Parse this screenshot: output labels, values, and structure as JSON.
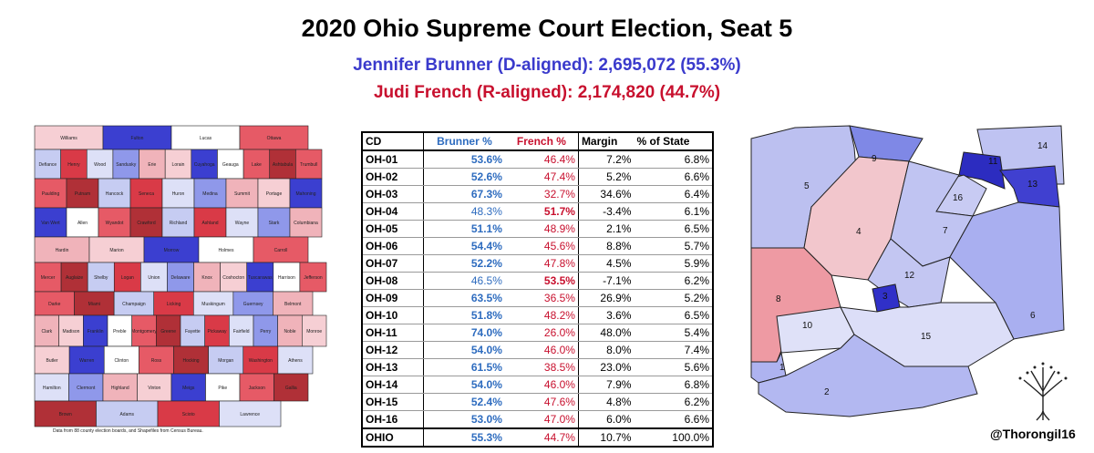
{
  "title": "2020 Ohio Supreme Court Election, Seat 5",
  "subtitle_d": "Jennifer Brunner (D-aligned): 2,695,072 (55.3%)",
  "subtitle_r": "Judi French (R-aligned): 2,174,820 (44.7%)",
  "colors": {
    "d_text": "#3a3acc",
    "r_text": "#c8102e",
    "brunner_col": "#2e6cbf",
    "french_col": "#c8102e"
  },
  "table": {
    "headers": [
      "CD",
      "Brunner %",
      "French %",
      "Margin",
      "% of State"
    ],
    "rows": [
      {
        "cd": "OH-01",
        "brunner": "53.6%",
        "french": "46.4%",
        "margin": "7.2%",
        "state": "6.8%",
        "winner": "b"
      },
      {
        "cd": "OH-02",
        "brunner": "52.6%",
        "french": "47.4%",
        "margin": "5.2%",
        "state": "6.6%",
        "winner": "b"
      },
      {
        "cd": "OH-03",
        "brunner": "67.3%",
        "french": "32.7%",
        "margin": "34.6%",
        "state": "6.4%",
        "winner": "b"
      },
      {
        "cd": "OH-04",
        "brunner": "48.3%",
        "french": "51.7%",
        "margin": "-3.4%",
        "state": "6.1%",
        "winner": "f"
      },
      {
        "cd": "OH-05",
        "brunner": "51.1%",
        "french": "48.9%",
        "margin": "2.1%",
        "state": "6.5%",
        "winner": "b"
      },
      {
        "cd": "OH-06",
        "brunner": "54.4%",
        "french": "45.6%",
        "margin": "8.8%",
        "state": "5.7%",
        "winner": "b"
      },
      {
        "cd": "OH-07",
        "brunner": "52.2%",
        "french": "47.8%",
        "margin": "4.5%",
        "state": "5.9%",
        "winner": "b"
      },
      {
        "cd": "OH-08",
        "brunner": "46.5%",
        "french": "53.5%",
        "margin": "-7.1%",
        "state": "6.2%",
        "winner": "f"
      },
      {
        "cd": "OH-09",
        "brunner": "63.5%",
        "french": "36.5%",
        "margin": "26.9%",
        "state": "5.2%",
        "winner": "b"
      },
      {
        "cd": "OH-10",
        "brunner": "51.8%",
        "french": "48.2%",
        "margin": "3.6%",
        "state": "6.5%",
        "winner": "b"
      },
      {
        "cd": "OH-11",
        "brunner": "74.0%",
        "french": "26.0%",
        "margin": "48.0%",
        "state": "5.4%",
        "winner": "b"
      },
      {
        "cd": "OH-12",
        "brunner": "54.0%",
        "french": "46.0%",
        "margin": "8.0%",
        "state": "7.4%",
        "winner": "b"
      },
      {
        "cd": "OH-13",
        "brunner": "61.5%",
        "french": "38.5%",
        "margin": "23.0%",
        "state": "5.6%",
        "winner": "b"
      },
      {
        "cd": "OH-14",
        "brunner": "54.0%",
        "french": "46.0%",
        "margin": "7.9%",
        "state": "6.8%",
        "winner": "b"
      },
      {
        "cd": "OH-15",
        "brunner": "52.4%",
        "french": "47.6%",
        "margin": "4.8%",
        "state": "6.2%",
        "winner": "b"
      },
      {
        "cd": "OH-16",
        "brunner": "53.0%",
        "french": "47.0%",
        "margin": "6.0%",
        "state": "6.6%",
        "winner": "b"
      }
    ],
    "total": {
      "cd": "OHIO",
      "brunner": "55.3%",
      "french": "44.7%",
      "margin": "10.7%",
      "state": "100.0%"
    }
  },
  "county_map": {
    "counties": [
      "Williams",
      "Fulton",
      "Lucas",
      "Ottawa",
      "Lake",
      "Ashtabula",
      "Defiance",
      "Henry",
      "Wood",
      "Sandusky",
      "Erie",
      "Lorain",
      "Cuyahoga",
      "Geauga",
      "Trumbull",
      "Paulding",
      "Putnam",
      "Hancock",
      "Seneca",
      "Huron",
      "Medina",
      "Summit",
      "Portage",
      "Mahoning",
      "Van Wert",
      "Allen",
      "Wyandot",
      "Crawford",
      "Richland",
      "Ashland",
      "Wayne",
      "Stark",
      "Columbiana",
      "Hardin",
      "Marion",
      "Morrow",
      "Holmes",
      "Carroll",
      "Mercer",
      "Auglaize",
      "Shelby",
      "Logan",
      "Union",
      "Delaware",
      "Knox",
      "Coshocton",
      "Tuscarawas",
      "Harrison",
      "Jefferson",
      "Darke",
      "Miami",
      "Champaign",
      "Licking",
      "Muskingum",
      "Guernsey",
      "Belmont",
      "Clark",
      "Madison",
      "Franklin",
      "Preble",
      "Montgomery",
      "Greene",
      "Fayette",
      "Pickaway",
      "Fairfield",
      "Perry",
      "Noble",
      "Monroe",
      "Butler",
      "Warren",
      "Clinton",
      "Ross",
      "Hocking",
      "Morgan",
      "Washington",
      "Athens",
      "Hamilton",
      "Clermont",
      "Highland",
      "Vinton",
      "Meigs",
      "Pike",
      "Jackson",
      "Gallia",
      "Brown",
      "Adams",
      "Scioto",
      "Lawrence"
    ]
  },
  "district_map": {
    "labels": [
      "1",
      "2",
      "3",
      "4",
      "5",
      "6",
      "7",
      "8",
      "9",
      "10",
      "11",
      "12",
      "13",
      "14",
      "15",
      "16"
    ]
  },
  "source_note": "Data from 88 county election boards, and Shapefiles from Census Bureau.",
  "credit": "@Thorongil16"
}
